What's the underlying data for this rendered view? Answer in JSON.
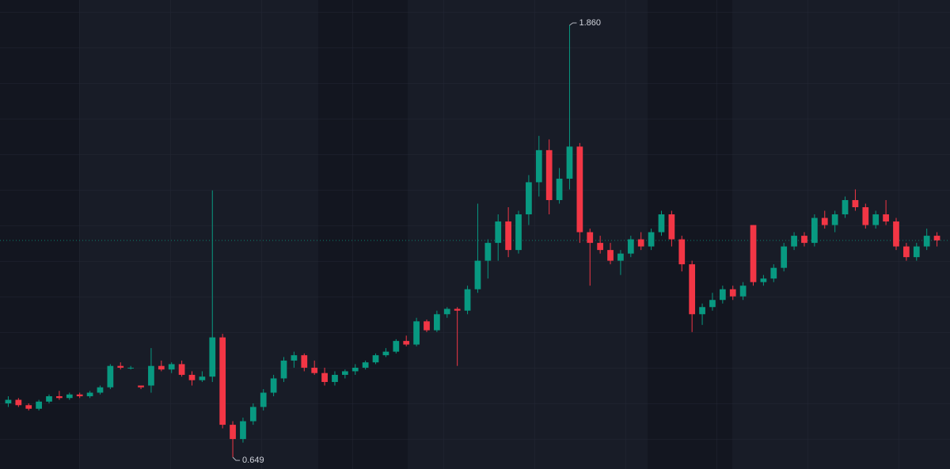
{
  "chart_data": {
    "type": "candlestick",
    "ylim": [
      0.616,
      1.931
    ],
    "up_color": "#089981",
    "down_color": "#f23645",
    "last_price_line": true,
    "annotations": {
      "max_high": "1.860",
      "min_low": "0.649"
    },
    "open": [
      0.8,
      0.81,
      0.795,
      0.785,
      0.805,
      0.82,
      0.815,
      0.825,
      0.82,
      0.83,
      0.845,
      0.905,
      0.9,
      0.85,
      0.85,
      0.905,
      0.895,
      0.91,
      0.88,
      0.865,
      0.875,
      0.985,
      0.74,
      0.7,
      0.75,
      0.79,
      0.83,
      0.87,
      0.92,
      0.935,
      0.9,
      0.885,
      0.86,
      0.88,
      0.89,
      0.9,
      0.915,
      0.935,
      0.945,
      0.975,
      0.965,
      1.03,
      1.005,
      1.05,
      1.065,
      1.06,
      1.12,
      1.2,
      1.25,
      1.31,
      1.23,
      1.33,
      1.42,
      1.51,
      1.37,
      1.43,
      1.52,
      1.28,
      1.25,
      1.23,
      1.2,
      1.22,
      1.26,
      1.24,
      1.28,
      1.33,
      1.26,
      1.19,
      1.05,
      1.07,
      1.09,
      1.12,
      1.1,
      1.3,
      1.14,
      1.15,
      1.18,
      1.24,
      1.27,
      1.25,
      1.32,
      1.3,
      1.33,
      1.37,
      1.35,
      1.3,
      1.33,
      1.31,
      1.24,
      1.21,
      1.24,
      1.27
    ],
    "high": [
      0.82,
      0.815,
      0.8,
      0.81,
      0.825,
      0.835,
      0.83,
      0.83,
      0.835,
      0.85,
      0.91,
      0.915,
      0.905,
      0.85,
      0.955,
      0.92,
      0.915,
      0.92,
      0.89,
      0.89,
      1.397,
      0.995,
      0.75,
      0.76,
      0.8,
      0.84,
      0.88,
      0.93,
      0.945,
      0.94,
      0.92,
      0.9,
      0.89,
      0.895,
      0.91,
      0.92,
      0.94,
      0.955,
      0.98,
      0.99,
      1.04,
      1.035,
      1.06,
      1.07,
      1.07,
      1.13,
      1.36,
      1.26,
      1.33,
      1.35,
      1.34,
      1.44,
      1.55,
      1.54,
      1.46,
      1.86,
      1.53,
      1.29,
      1.27,
      1.25,
      1.23,
      1.27,
      1.28,
      1.29,
      1.34,
      1.34,
      1.27,
      1.2,
      1.08,
      1.11,
      1.13,
      1.13,
      1.14,
      1.3,
      1.16,
      1.19,
      1.25,
      1.28,
      1.28,
      1.33,
      1.34,
      1.34,
      1.38,
      1.4,
      1.36,
      1.34,
      1.37,
      1.32,
      1.25,
      1.25,
      1.29,
      1.28
    ],
    "low": [
      0.79,
      0.79,
      0.78,
      0.78,
      0.8,
      0.81,
      0.81,
      0.815,
      0.815,
      0.825,
      0.84,
      0.895,
      0.895,
      0.84,
      0.83,
      0.89,
      0.885,
      0.875,
      0.85,
      0.86,
      0.86,
      0.73,
      0.649,
      0.69,
      0.74,
      0.78,
      0.82,
      0.86,
      0.9,
      0.89,
      0.88,
      0.85,
      0.85,
      0.87,
      0.88,
      0.895,
      0.91,
      0.93,
      0.94,
      0.96,
      0.96,
      1.0,
      1.0,
      1.04,
      0.905,
      1.05,
      1.11,
      1.15,
      1.2,
      1.21,
      1.22,
      1.3,
      1.38,
      1.33,
      1.36,
      1.4,
      1.25,
      1.13,
      1.22,
      1.19,
      1.16,
      1.21,
      1.23,
      1.23,
      1.27,
      1.24,
      1.17,
      1.0,
      1.02,
      1.06,
      1.08,
      1.09,
      1.09,
      1.13,
      1.13,
      1.14,
      1.17,
      1.23,
      1.24,
      1.24,
      1.29,
      1.28,
      1.32,
      1.34,
      1.29,
      1.29,
      1.3,
      1.23,
      1.2,
      1.2,
      1.23,
      1.24
    ],
    "close": [
      0.81,
      0.795,
      0.785,
      0.805,
      0.82,
      0.815,
      0.825,
      0.82,
      0.83,
      0.845,
      0.905,
      0.9,
      0.9,
      0.845,
      0.905,
      0.895,
      0.91,
      0.88,
      0.865,
      0.875,
      0.985,
      0.74,
      0.7,
      0.75,
      0.79,
      0.83,
      0.87,
      0.92,
      0.935,
      0.9,
      0.885,
      0.86,
      0.88,
      0.89,
      0.9,
      0.915,
      0.935,
      0.945,
      0.975,
      0.965,
      1.03,
      1.005,
      1.05,
      1.065,
      1.06,
      1.12,
      1.2,
      1.25,
      1.31,
      1.23,
      1.33,
      1.42,
      1.51,
      1.37,
      1.43,
      1.52,
      1.28,
      1.25,
      1.23,
      1.2,
      1.22,
      1.26,
      1.24,
      1.28,
      1.33,
      1.26,
      1.19,
      1.05,
      1.07,
      1.09,
      1.12,
      1.1,
      1.13,
      1.14,
      1.15,
      1.18,
      1.24,
      1.27,
      1.25,
      1.32,
      1.3,
      1.33,
      1.37,
      1.35,
      1.3,
      1.33,
      1.31,
      1.24,
      1.21,
      1.24,
      1.27,
      1.257
    ]
  }
}
